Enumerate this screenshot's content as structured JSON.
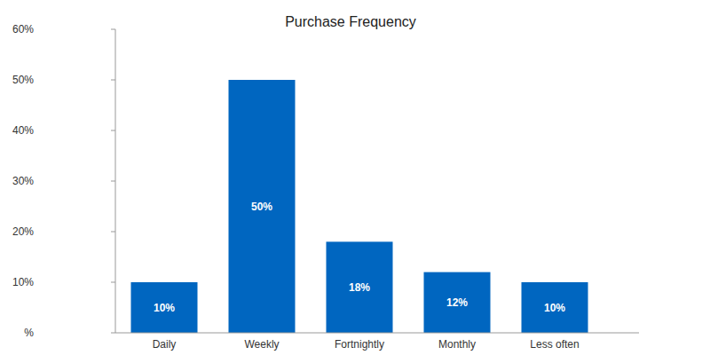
{
  "chart_data": {
    "type": "bar",
    "title": "Purchase Frequency",
    "categories": [
      "Daily",
      "Weekly",
      "Fortnightly",
      "Monthly",
      "Less often"
    ],
    "values": [
      10,
      50,
      18,
      12,
      10
    ],
    "value_labels": [
      "10%",
      "50%",
      "18%",
      "12%",
      "10%"
    ],
    "color": "#0066c0",
    "ylim": [
      0,
      60
    ],
    "yticks": [
      {
        "value": 0,
        "label": "%"
      },
      {
        "value": 10,
        "label": "10%"
      },
      {
        "value": 20,
        "label": "20%"
      },
      {
        "value": 30,
        "label": "30%"
      },
      {
        "value": 40,
        "label": "40%"
      },
      {
        "value": 50,
        "label": "50%"
      },
      {
        "value": 60,
        "label": "60%"
      }
    ],
    "grid": false,
    "data_labels": true
  }
}
